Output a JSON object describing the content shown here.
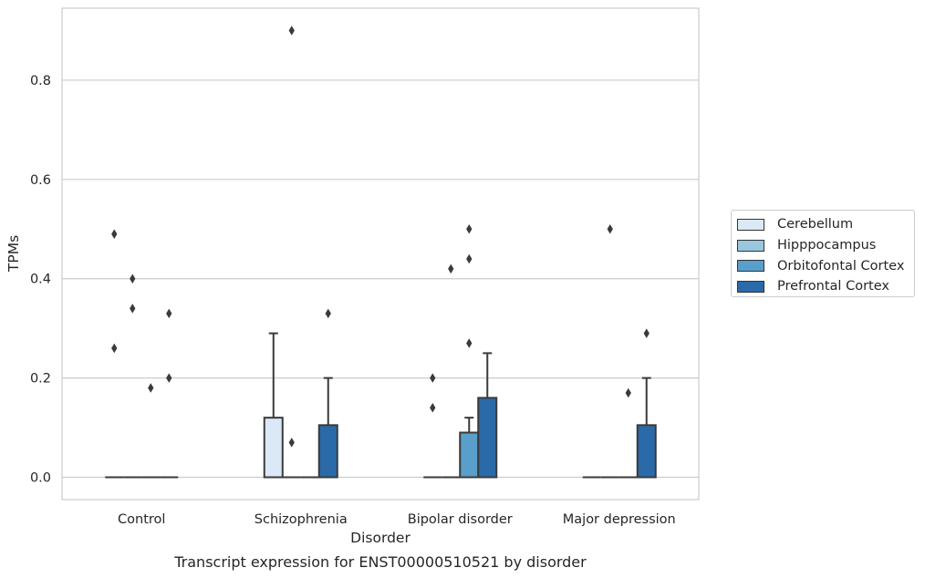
{
  "chart_data": {
    "type": "box",
    "caption": "Transcript expression for ENST00000510521 by disorder",
    "xlabel": "Disorder",
    "ylabel": "TPMs",
    "ylim": [
      -0.045,
      0.945
    ],
    "yticks": [
      0.0,
      0.2,
      0.4,
      0.6,
      0.8
    ],
    "ytick_labels": [
      "0.0",
      "0.2",
      "0.4",
      "0.6",
      "0.8"
    ],
    "grid": "horizontal",
    "legend_position": "right",
    "categories": [
      "Control",
      "Schizophrenia",
      "Bipolar disorder",
      "Major depression"
    ],
    "series": [
      {
        "name": "Cerebellum",
        "color": "#dbe9f6",
        "boxes": [
          {
            "q1": 0,
            "median": 0,
            "q3": 0,
            "whisker_low": 0,
            "whisker_high": 0,
            "outliers": [
              0.49,
              0.26
            ]
          },
          {
            "q1": 0,
            "median": 0,
            "q3": 0.12,
            "whisker_low": 0,
            "whisker_high": 0.29,
            "outliers": []
          },
          {
            "q1": 0,
            "median": 0,
            "q3": 0,
            "whisker_low": 0,
            "whisker_high": 0,
            "outliers": [
              0.2,
              0.14
            ]
          },
          {
            "q1": 0,
            "median": 0,
            "q3": 0,
            "whisker_low": 0,
            "whisker_high": 0,
            "outliers": []
          }
        ]
      },
      {
        "name": "Hipppocampus",
        "color": "#9ac7e0",
        "boxes": [
          {
            "q1": 0,
            "median": 0,
            "q3": 0,
            "whisker_low": 0,
            "whisker_high": 0,
            "outliers": [
              0.4,
              0.34
            ]
          },
          {
            "q1": 0,
            "median": 0,
            "q3": 0,
            "whisker_low": 0,
            "whisker_high": 0,
            "outliers": [
              0.9,
              0.07
            ]
          },
          {
            "q1": 0,
            "median": 0,
            "q3": 0,
            "whisker_low": 0,
            "whisker_high": 0,
            "outliers": [
              0.42
            ]
          },
          {
            "q1": 0,
            "median": 0,
            "q3": 0,
            "whisker_low": 0,
            "whisker_high": 0,
            "outliers": [
              0.5
            ]
          }
        ]
      },
      {
        "name": "Orbitofontal Cortex",
        "color": "#5a9ecb",
        "boxes": [
          {
            "q1": 0,
            "median": 0,
            "q3": 0,
            "whisker_low": 0,
            "whisker_high": 0,
            "outliers": [
              0.18
            ]
          },
          {
            "q1": 0,
            "median": 0,
            "q3": 0,
            "whisker_low": 0,
            "whisker_high": 0,
            "outliers": []
          },
          {
            "q1": 0,
            "median": 0,
            "q3": 0.09,
            "whisker_low": 0,
            "whisker_high": 0.12,
            "outliers": [
              0.5,
              0.44,
              0.27
            ]
          },
          {
            "q1": 0,
            "median": 0,
            "q3": 0,
            "whisker_low": 0,
            "whisker_high": 0,
            "outliers": [
              0.17
            ]
          }
        ]
      },
      {
        "name": "Prefrontal Cortex",
        "color": "#2a6aa9",
        "boxes": [
          {
            "q1": 0,
            "median": 0,
            "q3": 0,
            "whisker_low": 0,
            "whisker_high": 0,
            "outliers": [
              0.33,
              0.2
            ]
          },
          {
            "q1": 0,
            "median": 0,
            "q3": 0.105,
            "whisker_low": 0,
            "whisker_high": 0.2,
            "outliers": [
              0.33
            ]
          },
          {
            "q1": 0,
            "median": 0,
            "q3": 0.16,
            "whisker_low": 0,
            "whisker_high": 0.25,
            "outliers": []
          },
          {
            "q1": 0,
            "median": 0,
            "q3": 0.105,
            "whisker_low": 0,
            "whisker_high": 0.2,
            "outliers": [
              0.29
            ]
          }
        ]
      }
    ]
  }
}
